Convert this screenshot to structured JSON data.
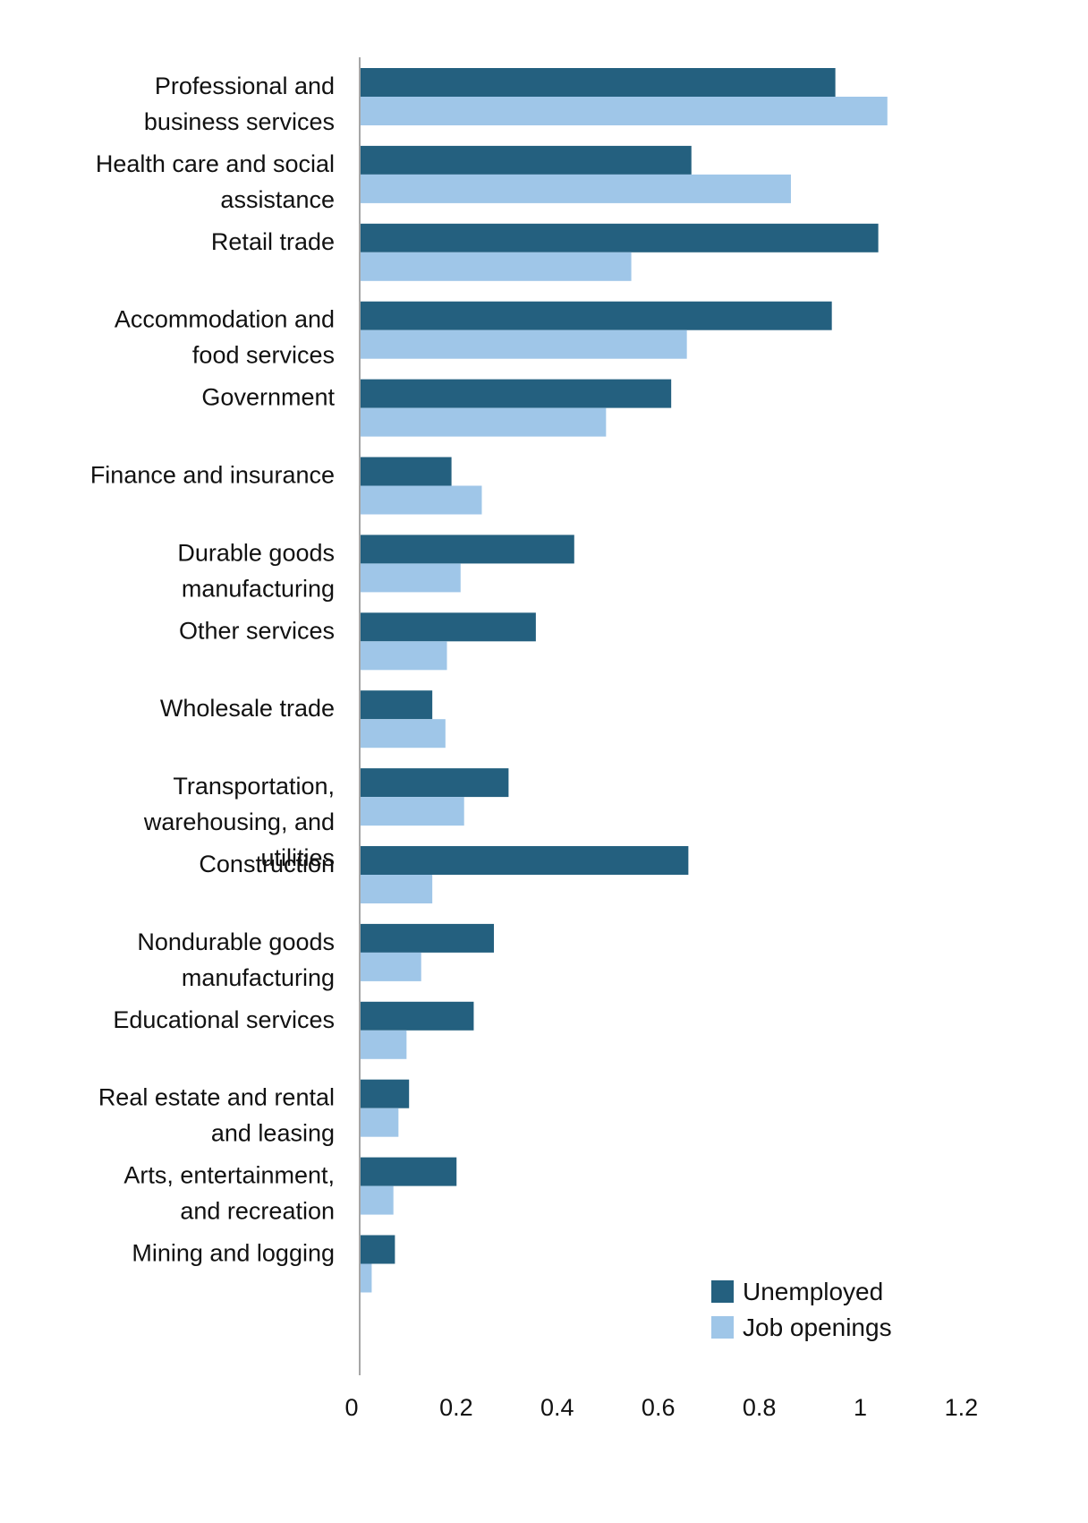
{
  "chart_data": {
    "type": "bar",
    "orientation": "horizontal",
    "categories": [
      "Professional and business services",
      "Health care and social assistance",
      "Retail trade",
      "Accommodation and food services",
      "Government",
      "Finance and insurance",
      "Durable goods manufacturing",
      "Other services",
      "Wholesale trade",
      "Transportation, warehousing, and utilities",
      "Construction",
      "Nondurable goods manufacturing",
      "Educational services",
      "Real estate and rental and leasing",
      "Arts, entertainment, and recreation",
      "Mining and logging"
    ],
    "category_lines": [
      [
        "Professional and",
        "business services"
      ],
      [
        "Health care and social",
        "assistance"
      ],
      [
        "Retail trade"
      ],
      [
        "Accommodation and",
        "food services"
      ],
      [
        "Government"
      ],
      [
        "Finance and insurance"
      ],
      [
        "Durable goods",
        "manufacturing"
      ],
      [
        "Other services"
      ],
      [
        "Wholesale trade"
      ],
      [
        "Transportation,",
        "warehousing, and",
        "utilities"
      ],
      [
        "Construction"
      ],
      [
        "Nondurable goods",
        "manufacturing"
      ],
      [
        "Educational services"
      ],
      [
        "Real estate and rental",
        "and leasing"
      ],
      [
        "Arts, entertainment,",
        "and recreation"
      ],
      [
        "Mining and logging"
      ]
    ],
    "series": [
      {
        "name": "Unemployed",
        "color": "#24607f",
        "values": [
          0.94,
          0.655,
          1.025,
          0.933,
          0.615,
          0.18,
          0.423,
          0.347,
          0.142,
          0.293,
          0.649,
          0.264,
          0.224,
          0.096,
          0.19,
          0.068
        ]
      },
      {
        "name": "Job openings",
        "color": "#9fc6e8",
        "values": [
          1.043,
          0.852,
          0.536,
          0.646,
          0.486,
          0.24,
          0.198,
          0.171,
          0.168,
          0.205,
          0.142,
          0.12,
          0.091,
          0.075,
          0.065,
          0.022
        ]
      }
    ],
    "xlim": [
      0,
      1.2
    ],
    "xticks": [
      "0",
      "0.2",
      "0.4",
      "0.6",
      "0.8",
      "1",
      "1.2"
    ],
    "xtick_values": [
      0,
      0.2,
      0.4,
      0.6,
      0.8,
      1,
      1.2
    ],
    "title": "",
    "xlabel": "",
    "ylabel": "",
    "grid": false,
    "legend_position": "bottom-right"
  }
}
